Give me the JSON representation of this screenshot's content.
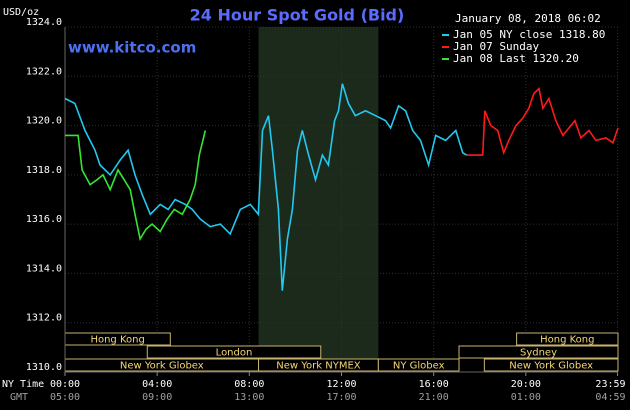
{
  "chart_data": {
    "type": "line",
    "title": "24 Hour Spot Gold (Bid)",
    "watermark": "www.kitco.com",
    "unit_label": "USD/oz",
    "timestamp": "January 08, 2018 06:02",
    "x_row_label": "NY Time",
    "x2_row_label": "GMT",
    "xlim": [
      0,
      24
    ],
    "ylim": [
      1310,
      1324
    ],
    "grid": true,
    "legend": "top-right",
    "xticks": [
      {
        "value": 0,
        "label": "00:00"
      },
      {
        "value": 4,
        "label": "04:00"
      },
      {
        "value": 8,
        "label": "08:00"
      },
      {
        "value": 12,
        "label": "12:00"
      },
      {
        "value": 16,
        "label": "16:00"
      },
      {
        "value": 20,
        "label": "20:00"
      },
      {
        "value": 23.98,
        "label": "23:59"
      }
    ],
    "x2ticks": [
      {
        "value": 0,
        "label": "05:00"
      },
      {
        "value": 4,
        "label": "09:00"
      },
      {
        "value": 8,
        "label": "13:00"
      },
      {
        "value": 12,
        "label": "17:00"
      },
      {
        "value": 16,
        "label": "21:00"
      },
      {
        "value": 20,
        "label": "01:00"
      },
      {
        "value": 23.98,
        "label": "04:59"
      }
    ],
    "yticks": [
      {
        "value": 1310,
        "label": "1310.0"
      },
      {
        "value": 1312,
        "label": "1312.0"
      },
      {
        "value": 1314,
        "label": "1314.0"
      },
      {
        "value": 1316,
        "label": "1316.0"
      },
      {
        "value": 1318,
        "label": "1318.0"
      },
      {
        "value": 1320,
        "label": "1320.0"
      },
      {
        "value": 1322,
        "label": "1322.0"
      },
      {
        "value": 1324,
        "label": "1324.0"
      }
    ],
    "session_rows": [
      [
        {
          "name": "Hong Kong",
          "start": 0,
          "end": 4.57
        },
        {
          "name": "Hong Kong",
          "start": 19.6,
          "end": 24
        }
      ],
      [
        {
          "name": "London",
          "start": 3.57,
          "end": 11.1
        },
        {
          "name": "Sydney",
          "start": 17.1,
          "end": 24
        }
      ],
      [
        {
          "name": "New York Globex",
          "start": 0,
          "end": 8.4
        },
        {
          "name": "New York NYMEX",
          "start": 8.4,
          "end": 13.6,
          "highlight": true
        },
        {
          "name": "NY Globex",
          "start": 13.6,
          "end": 17.1
        },
        {
          "name": "New York Globex",
          "start": 18.2,
          "end": 24
        }
      ]
    ],
    "series": [
      {
        "name": "Jan 05 NY close 1318.80",
        "color": "#22c8f0",
        "x": [
          0,
          0.43,
          0.87,
          1.3,
          1.52,
          1.96,
          2.39,
          2.74,
          3.04,
          3.35,
          3.7,
          4.13,
          4.48,
          4.78,
          5.22,
          5.52,
          5.87,
          6.3,
          6.74,
          7.17,
          7.61,
          8.04,
          8.39,
          8.57,
          8.83,
          9.0,
          9.26,
          9.43,
          9.65,
          9.87,
          10.09,
          10.3,
          10.57,
          10.87,
          11.17,
          11.43,
          11.7,
          11.87,
          12.04,
          12.3,
          12.6,
          13.04,
          13.48,
          13.91,
          14.13,
          14.48,
          14.78,
          15.09,
          15.43,
          15.78,
          16.09,
          16.52,
          16.96,
          17.26,
          17.43
        ],
        "values": [
          1321.1,
          1320.9,
          1319.8,
          1319.0,
          1318.4,
          1318.0,
          1318.6,
          1319.0,
          1318.0,
          1317.2,
          1316.4,
          1316.8,
          1316.6,
          1317.0,
          1316.8,
          1316.6,
          1316.2,
          1315.9,
          1316.0,
          1315.6,
          1316.6,
          1316.8,
          1316.4,
          1319.8,
          1320.4,
          1319.0,
          1316.6,
          1313.3,
          1315.4,
          1316.6,
          1319.0,
          1319.8,
          1318.8,
          1317.8,
          1318.8,
          1318.4,
          1320.2,
          1320.6,
          1321.7,
          1320.9,
          1320.4,
          1320.6,
          1320.4,
          1320.2,
          1319.9,
          1320.8,
          1320.6,
          1319.8,
          1319.4,
          1318.4,
          1319.6,
          1319.4,
          1319.8,
          1318.9,
          1318.8
        ]
      },
      {
        "name": "Jan 07 Sunday",
        "color": "#ff1a1a",
        "x": [
          17.43,
          18.13,
          18.22,
          18.48,
          18.78,
          19.04,
          19.26,
          19.57,
          19.87,
          20.13,
          20.35,
          20.57,
          20.74,
          21.0,
          21.3,
          21.61,
          21.87,
          22.13,
          22.39,
          22.74,
          23.04,
          23.48,
          23.78,
          24
        ],
        "values": [
          1318.8,
          1318.8,
          1320.6,
          1320.0,
          1319.8,
          1318.9,
          1319.4,
          1320.0,
          1320.3,
          1320.7,
          1321.3,
          1321.5,
          1320.7,
          1321.1,
          1320.2,
          1319.6,
          1319.9,
          1320.2,
          1319.5,
          1319.8,
          1319.4,
          1319.5,
          1319.3,
          1319.9
        ]
      },
      {
        "name": "Jan 08 Last 1320.20",
        "color": "#33e633",
        "x": [
          0,
          0.57,
          0.74,
          1.09,
          1.39,
          1.65,
          1.96,
          2.3,
          2.57,
          2.83,
          3.04,
          3.26,
          3.52,
          3.78,
          4.13,
          4.43,
          4.74,
          5.09,
          5.43,
          5.65,
          5.83,
          6.09
        ],
        "values": [
          1319.6,
          1319.6,
          1318.2,
          1317.6,
          1317.8,
          1318.0,
          1317.4,
          1318.2,
          1317.8,
          1317.4,
          1316.4,
          1315.4,
          1315.8,
          1316.0,
          1315.7,
          1316.2,
          1316.6,
          1316.4,
          1317.0,
          1317.6,
          1318.8,
          1319.8
        ]
      }
    ]
  }
}
